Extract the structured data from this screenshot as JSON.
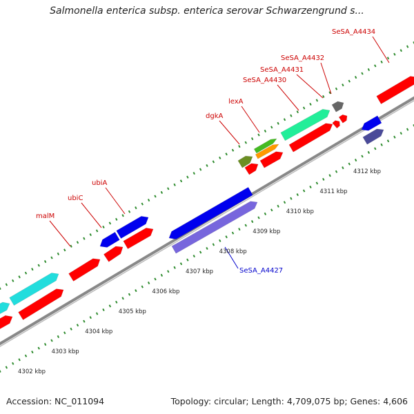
{
  "title": "Salmonella enterica subsp. enterica serovar Schwarzengrund s...",
  "footer": {
    "accession": "Accession: NC_011094",
    "topology": "Topology: circular; Length: 4,709,075 bp; Genes: 4,606"
  },
  "colors": {
    "axis": "#888888",
    "tick": "#2e8b2e",
    "forward_label": "#cc0000",
    "reverse_label": "#0000cc",
    "red": "#ff0000",
    "blue": "#0000ee",
    "teal": "#22dddd",
    "spring": "#22ee99",
    "olive": "#6b8e23",
    "green": "#44bb22",
    "orange": "#ff9900",
    "gray": "#666666",
    "lavender": "#7766dd",
    "slate": "#4a4a99"
  },
  "kbp_labels": [
    "4302 kbp",
    "4303 kbp",
    "4304 kbp",
    "4305 kbp",
    "4306 kbp",
    "4307 kbp",
    "4308 kbp",
    "4309 kbp",
    "4310 kbp",
    "4311 kbp",
    "4312 kbp"
  ],
  "gene_labels": [
    {
      "text": "malM",
      "strand": "forward"
    },
    {
      "text": "ubiC",
      "strand": "forward"
    },
    {
      "text": "ubiA",
      "strand": "forward"
    },
    {
      "text": "dgkA",
      "strand": "forward"
    },
    {
      "text": "lexA",
      "strand": "forward"
    },
    {
      "text": "SeSA_A4430",
      "strand": "forward"
    },
    {
      "text": "SeSA_A4431",
      "strand": "forward"
    },
    {
      "text": "SeSA_A4432",
      "strand": "forward"
    },
    {
      "text": "SeSA_A4434",
      "strand": "forward"
    },
    {
      "text": "SeSA_A4427",
      "strand": "reverse"
    }
  ]
}
